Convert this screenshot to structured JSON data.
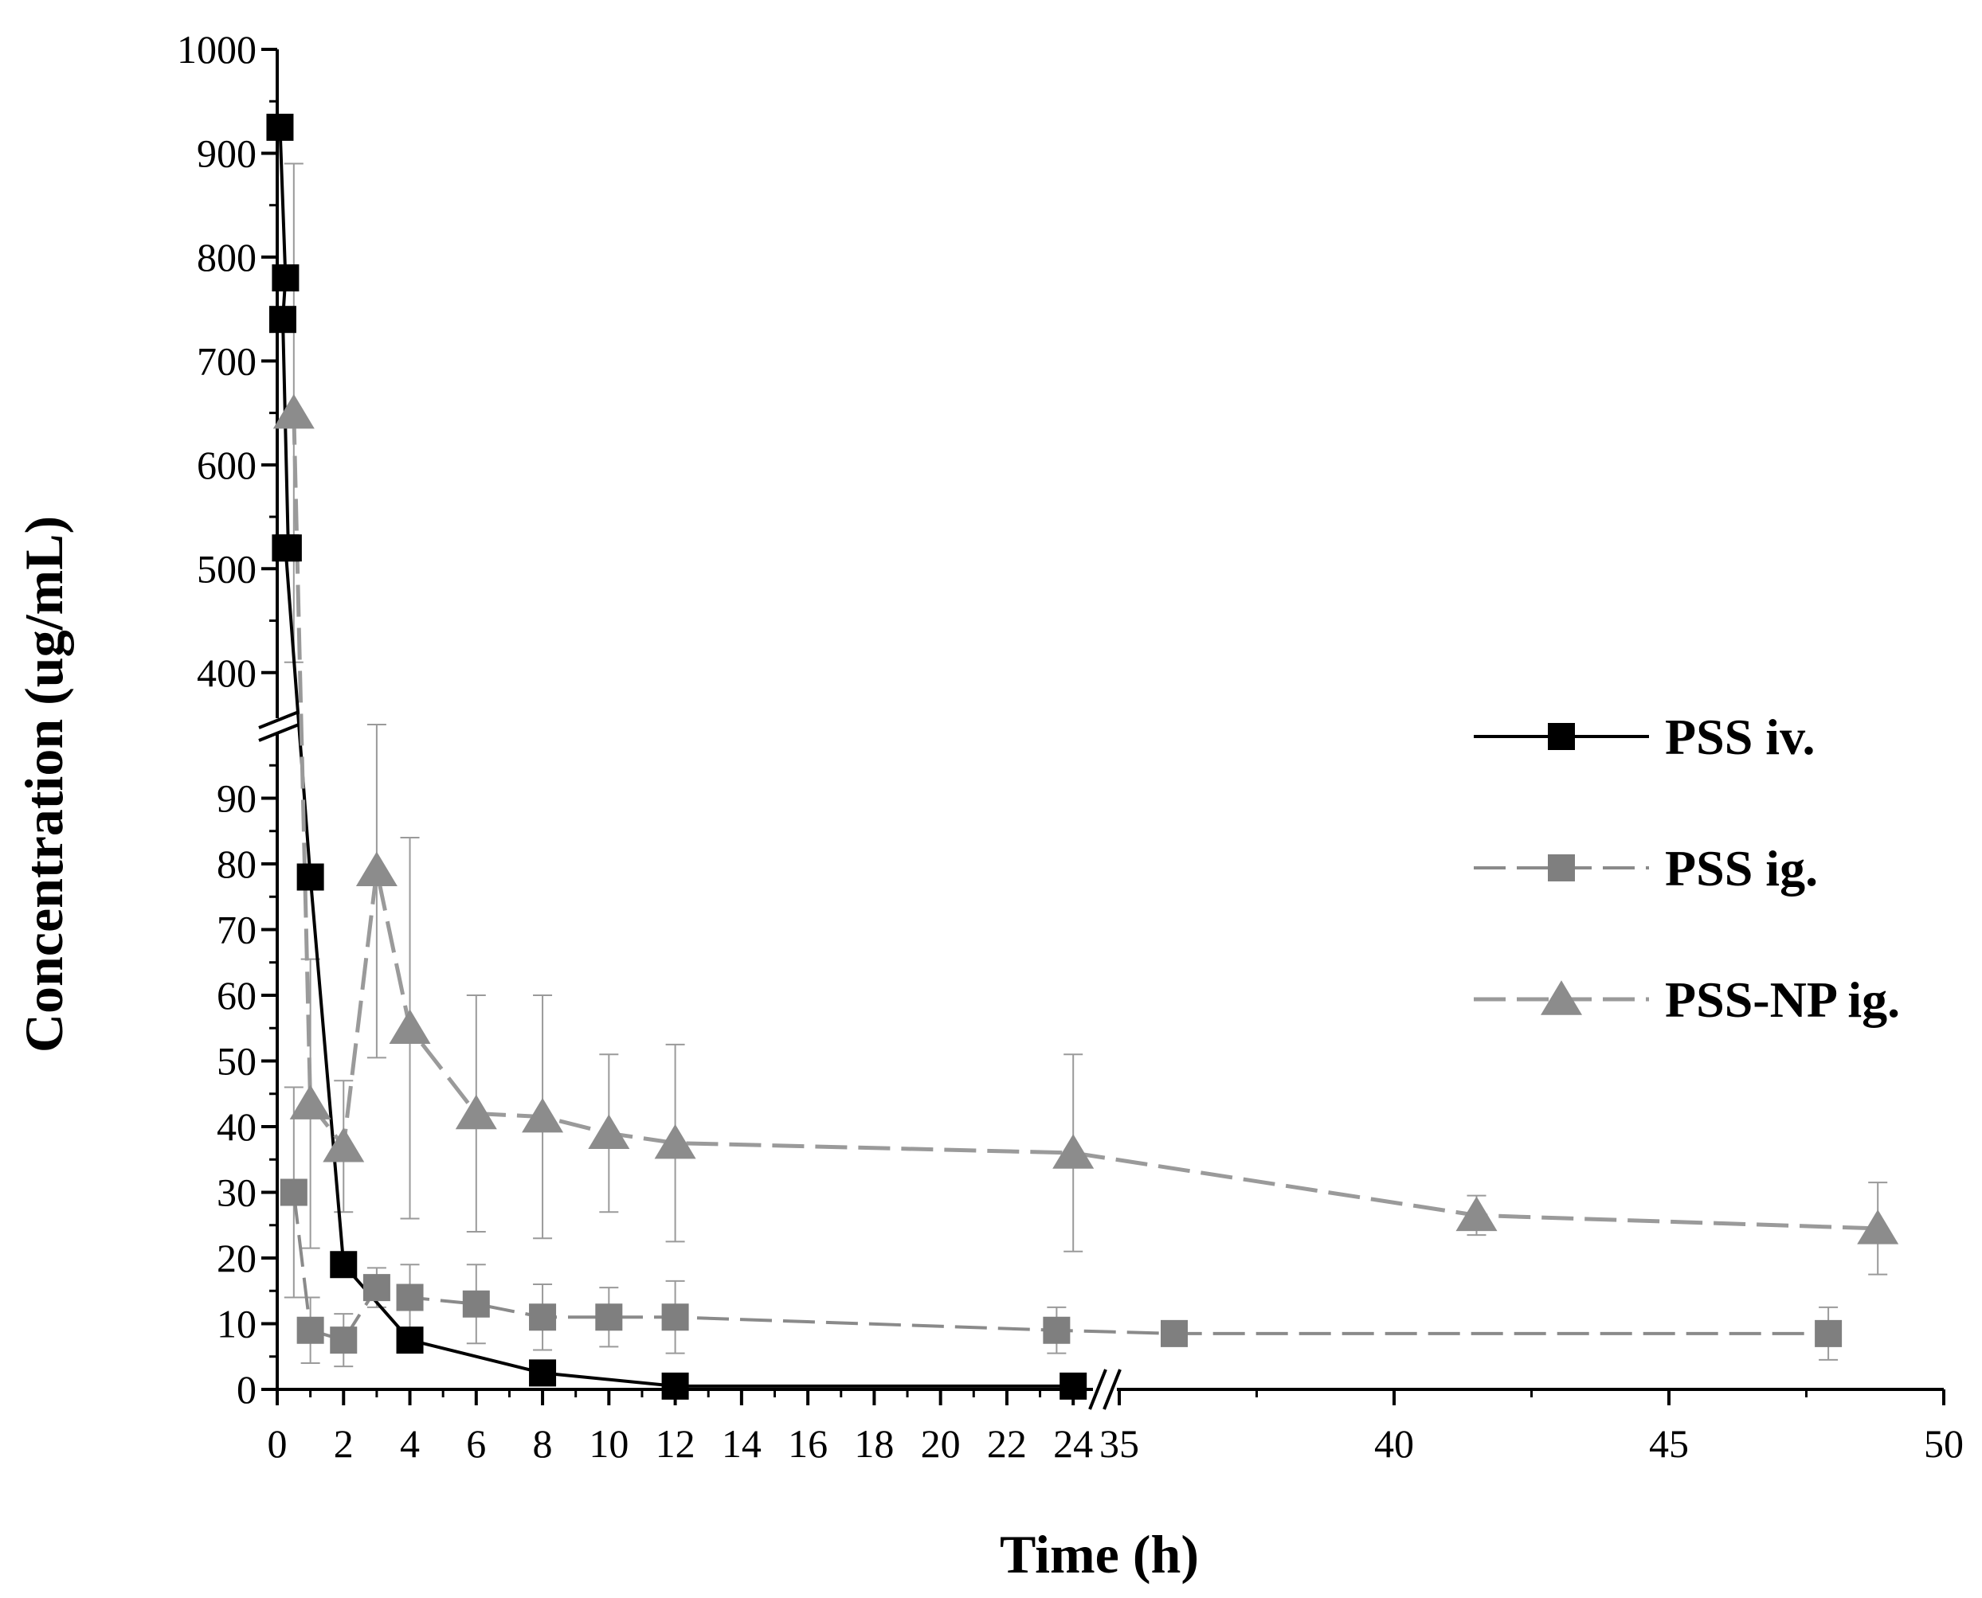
{
  "chart_data": {
    "type": "line",
    "title": "",
    "xlabel": "Time (h)",
    "ylabel": "Concentration (ug/mL)",
    "x_axis": {
      "segments": [
        {
          "range": [
            0,
            24.5
          ],
          "ticks": [
            0,
            2,
            4,
            6,
            8,
            10,
            12,
            14,
            16,
            18,
            20,
            22,
            24
          ]
        },
        {
          "range": [
            35,
            50
          ],
          "ticks": [
            35,
            40,
            45,
            50
          ]
        }
      ],
      "break": "between 24.5 and 35"
    },
    "y_axis": {
      "segments": [
        {
          "range": [
            0,
            100
          ],
          "ticks": [
            0,
            10,
            20,
            30,
            40,
            50,
            60,
            70,
            80,
            90
          ]
        },
        {
          "range": [
            350,
            1000
          ],
          "ticks": [
            400,
            500,
            600,
            700,
            800,
            900,
            1000
          ]
        }
      ],
      "break": "between 100 and 350"
    },
    "legend_position": "right",
    "series": [
      {
        "name": "PSS iv.",
        "color": "#000000",
        "marker": "square",
        "line": "solid",
        "points": [
          {
            "x": 0.083,
            "y": 925
          },
          {
            "x": 0.25,
            "y": 780
          },
          {
            "x": 0.167,
            "y": 740
          },
          {
            "x": 0.333,
            "y": 520
          },
          {
            "x": 0.25,
            "y": 520
          },
          {
            "x": 1,
            "y": 78
          },
          {
            "x": 2,
            "y": 19
          },
          {
            "x": 4,
            "y": 7.5
          },
          {
            "x": 8,
            "y": 2.5
          },
          {
            "x": 12,
            "y": 0.5
          },
          {
            "x": 24,
            "y": 0.5
          }
        ]
      },
      {
        "name": "PSS ig.",
        "color": "#7f7f7f",
        "marker": "square",
        "line": "dash",
        "points": [
          {
            "x": 0.5,
            "y": 30,
            "err": 16
          },
          {
            "x": 1,
            "y": 9,
            "err": 5
          },
          {
            "x": 2,
            "y": 7.5,
            "err": 4
          },
          {
            "x": 3,
            "y": 15.5,
            "err": 3
          },
          {
            "x": 4,
            "y": 14,
            "err": 5
          },
          {
            "x": 6,
            "y": 13,
            "err": 6
          },
          {
            "x": 8,
            "y": 11,
            "err": 5
          },
          {
            "x": 10,
            "y": 11,
            "err": 4.5
          },
          {
            "x": 12,
            "y": 11,
            "err": 5.5
          },
          {
            "x": 23.5,
            "y": 9,
            "err": 3.5
          },
          {
            "x": 36,
            "y": 8.5,
            "err": 0
          },
          {
            "x": 47.9,
            "y": 8.5,
            "err": 4
          }
        ]
      },
      {
        "name": "PSS-NP ig.",
        "color": "#8c8c8c",
        "marker": "triangle",
        "line": "dash",
        "points": [
          {
            "x": 0.5,
            "y": 650,
            "err": 240
          },
          {
            "x": 1,
            "y": 43.5,
            "err": 22
          },
          {
            "x": 2,
            "y": 37,
            "err": 10
          },
          {
            "x": 3,
            "y": 79,
            "err": 28.5
          },
          {
            "x": 4,
            "y": 55,
            "err": 29
          },
          {
            "x": 6,
            "y": 42,
            "err": 18
          },
          {
            "x": 8,
            "y": 41.5,
            "err": 18.5
          },
          {
            "x": 10,
            "y": 39,
            "err": 12
          },
          {
            "x": 12,
            "y": 37.5,
            "err": 15
          },
          {
            "x": 24,
            "y": 36,
            "err": 15
          },
          {
            "x": 41.5,
            "y": 26.5,
            "err": 3
          },
          {
            "x": 48.8,
            "y": 24.5,
            "err": 7
          }
        ]
      }
    ]
  }
}
